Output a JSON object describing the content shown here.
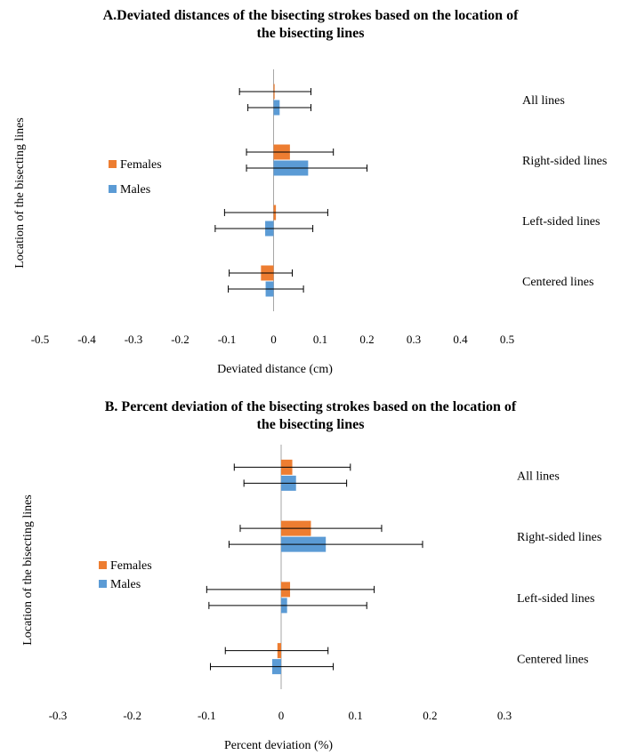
{
  "chart_data": [
    {
      "type": "bar",
      "orientation": "horizontal",
      "title": [
        "A.Deviated distances of the bisecting strokes based on the location of",
        "the bisecting lines"
      ],
      "xlabel": "Deviated distance (cm)",
      "ylabel": "Location of the bisecting lines",
      "categories": [
        "All lines",
        "Right-sided lines",
        "Left-sided lines",
        "Centered lines"
      ],
      "xlim": [
        -0.5,
        0.5
      ],
      "xticks": [
        "-0.5",
        "-0.4",
        "-0.3",
        "-0.2",
        "-0.1",
        "0",
        "0.1",
        "0.2",
        "0.3",
        "0.4",
        "0.5"
      ],
      "grid": false,
      "legend_position": "left",
      "series": [
        {
          "name": "Females",
          "color": "#ED7D31",
          "values": [
            0.002,
            0.035,
            0.005,
            -0.027
          ],
          "error_low": [
            -0.073,
            -0.058,
            -0.105,
            -0.095
          ],
          "error_high": [
            0.08,
            0.128,
            0.116,
            0.04
          ]
        },
        {
          "name": "Males",
          "color": "#5B9BD5",
          "values": [
            0.013,
            0.074,
            -0.018,
            -0.017
          ],
          "error_low": [
            -0.055,
            -0.058,
            -0.125,
            -0.097
          ],
          "error_high": [
            0.08,
            0.2,
            0.084,
            0.064
          ]
        }
      ]
    },
    {
      "type": "bar",
      "orientation": "horizontal",
      "title": [
        "B. Percent deviation of the bisecting strokes based on the location of",
        "the bisecting lines"
      ],
      "xlabel": "Percent deviation (%)",
      "ylabel": "Location of the bisecting  lines",
      "categories": [
        "All lines",
        "Right-sided lines",
        "Left-sided lines",
        "Centered lines"
      ],
      "xlim": [
        -0.3,
        0.3
      ],
      "xticks": [
        "-0.3",
        "-0.2",
        "-0.1",
        "0",
        "0.1",
        "0.2",
        "0.3"
      ],
      "grid": false,
      "legend_position": "left",
      "series": [
        {
          "name": "Females",
          "color": "#ED7D31",
          "values": [
            0.015,
            0.04,
            0.012,
            -0.005
          ],
          "error_low": [
            -0.063,
            -0.055,
            -0.1,
            -0.075
          ],
          "error_high": [
            0.093,
            0.135,
            0.125,
            0.063
          ]
        },
        {
          "name": "Males",
          "color": "#5B9BD5",
          "values": [
            0.02,
            0.06,
            0.008,
            -0.012
          ],
          "error_low": [
            -0.05,
            -0.07,
            -0.097,
            -0.095
          ],
          "error_high": [
            0.088,
            0.19,
            0.115,
            0.07
          ]
        }
      ]
    }
  ]
}
